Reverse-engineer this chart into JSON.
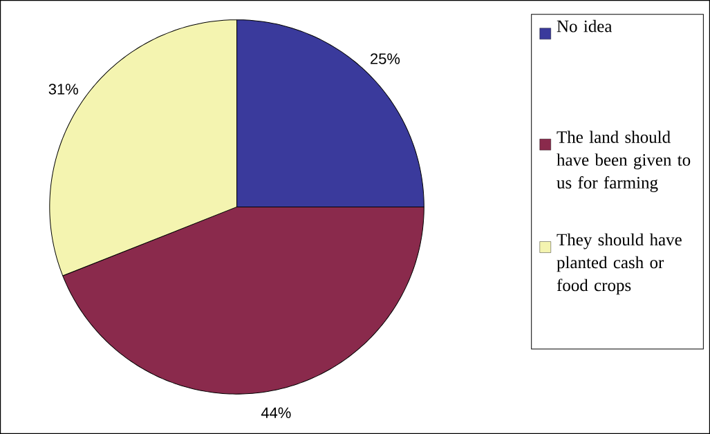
{
  "chart_data": {
    "type": "pie",
    "categories": [
      "No idea",
      "The land should have been given to us for farming",
      "They should have planted cash or food crops"
    ],
    "values": [
      25,
      44,
      31
    ],
    "colors": [
      "#3a3a9c",
      "#8a2a4c",
      "#f4f4b0"
    ],
    "value_labels": [
      "25%",
      "44%",
      "31%"
    ],
    "legend": "right"
  }
}
